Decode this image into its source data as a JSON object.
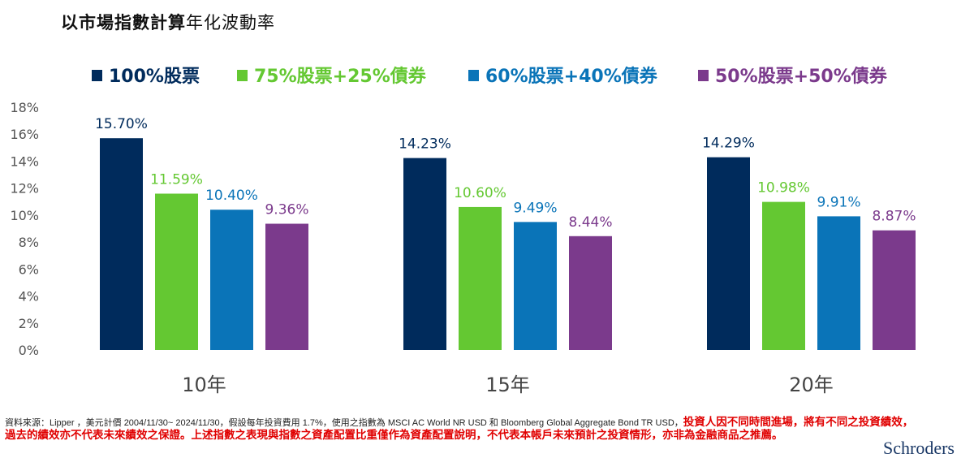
{
  "title_bold": "以市場指數計算",
  "title_normal": "年化波動率",
  "chart_data": {
    "type": "bar",
    "title": "以市場指數計算年化波動率",
    "categories": [
      "10年",
      "15年",
      "20年"
    ],
    "series": [
      {
        "name": "100%股票",
        "color": "#002b5c",
        "values": [
          15.7,
          14.23,
          14.29
        ]
      },
      {
        "name": "75%股票+25%債券",
        "color": "#64c832",
        "values": [
          11.59,
          10.6,
          10.98
        ]
      },
      {
        "name": "60%股票+40%債券",
        "color": "#0a74b8",
        "values": [
          10.4,
          9.49,
          9.91
        ]
      },
      {
        "name": "50%股票+50%債券",
        "color": "#7b3a8c",
        "values": [
          9.36,
          8.44,
          8.87
        ]
      }
    ],
    "yticks": [
      "0%",
      "2%",
      "4%",
      "6%",
      "8%",
      "10%",
      "12%",
      "14%",
      "16%",
      "18%"
    ],
    "ylim": [
      0,
      18
    ],
    "grid": false,
    "legend": "top"
  },
  "footnote": {
    "source": "資料來源：Lipper ，美元計價 2004/11/30~ 2024/11/30，假設每年投資費用 1.7%，使用之指數為 MSCI AC World NR USD 和 Bloomberg Global Aggregate Bond TR USD，",
    "warning1": "投資人因不同時間進場，將有不同之投資績效，",
    "warning2": "過去的績效亦不代表未來績效之保證。上述指數之表現與指數之資產配置比重僅作為資產配置說明，不代表本帳戶未來預計之投資情形，亦非為金融商品之推薦。"
  },
  "logo": "Schroders"
}
